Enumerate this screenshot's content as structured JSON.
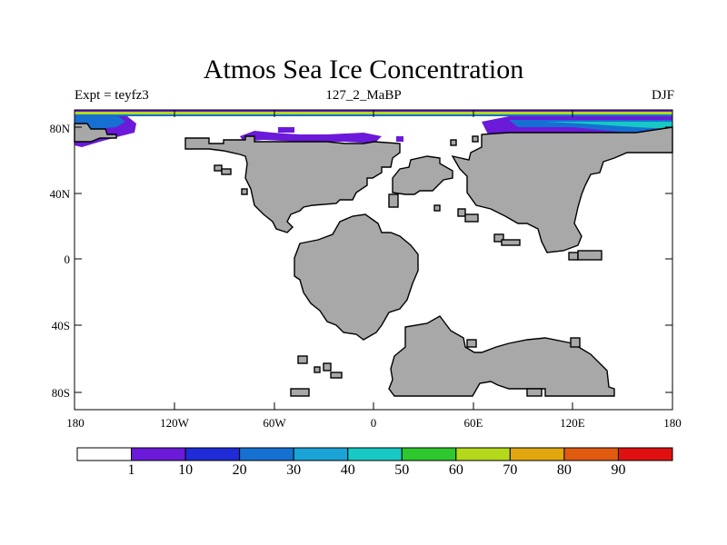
{
  "title": "Atmos Sea Ice Concentration",
  "left_subtitle": "Expt = teyfz3",
  "center_subtitle": "127_2_MaBP",
  "right_subtitle": "DJF",
  "lat_labels": [
    "80N",
    "40N",
    "0",
    "40S",
    "80S"
  ],
  "lon_labels": [
    "180",
    "120W",
    "60W",
    "0",
    "60E",
    "120E",
    "180"
  ],
  "colorbar": {
    "labels": [
      "1",
      "10",
      "20",
      "30",
      "40",
      "50",
      "60",
      "70",
      "80",
      "90"
    ],
    "colors": [
      "#ffffff",
      "#6a1ad8",
      "#1e2bd6",
      "#1670d2",
      "#1aa3d6",
      "#18c8c4",
      "#2ec82e",
      "#b4d81a",
      "#e0a80e",
      "#e05a10",
      "#e01010"
    ]
  },
  "land_color": "#a8a8a8"
}
